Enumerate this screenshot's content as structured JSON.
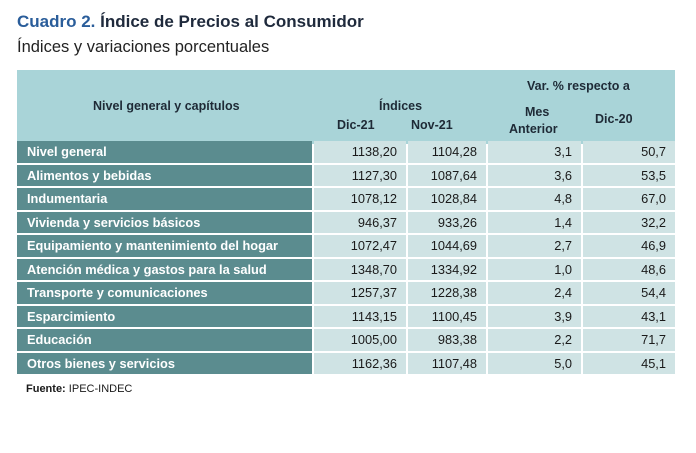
{
  "title": {
    "number": "Cuadro 2.",
    "text": "Índice de Precios al Consumidor"
  },
  "subtitle": "Índices y variaciones porcentuales",
  "header": {
    "nivel": "Nivel general y capítulos",
    "indices": "Índices",
    "dic21": "Dic-21",
    "nov21": "Nov-21",
    "var": "Var. % respecto a",
    "mes": "Mes",
    "anterior": "Anterior",
    "dic20": "Dic-20"
  },
  "rows": [
    {
      "label": "Nivel general",
      "dic21": "1138,20",
      "nov21": "1104,28",
      "mes": "3,1",
      "dic20": "50,7"
    },
    {
      "label": "Alimentos y bebidas",
      "dic21": "1127,30",
      "nov21": "1087,64",
      "mes": "3,6",
      "dic20": "53,5"
    },
    {
      "label": "Indumentaria",
      "dic21": "1078,12",
      "nov21": "1028,84",
      "mes": "4,8",
      "dic20": "67,0"
    },
    {
      "label": "Vivienda y servicios básicos",
      "dic21": "946,37",
      "nov21": "933,26",
      "mes": "1,4",
      "dic20": "32,2"
    },
    {
      "label": "Equipamiento y mantenimiento del hogar",
      "dic21": "1072,47",
      "nov21": "1044,69",
      "mes": "2,7",
      "dic20": "46,9"
    },
    {
      "label": "Atención médica y gastos para la salud",
      "dic21": "1348,70",
      "nov21": "1334,92",
      "mes": "1,0",
      "dic20": "48,6"
    },
    {
      "label": "Transporte y comunicaciones",
      "dic21": "1257,37",
      "nov21": "1228,38",
      "mes": "2,4",
      "dic20": "54,4"
    },
    {
      "label": "Esparcimiento",
      "dic21": "1143,15",
      "nov21": "1100,45",
      "mes": "3,9",
      "dic20": "43,1"
    },
    {
      "label": "Educación",
      "dic21": "1005,00",
      "nov21": "983,38",
      "mes": "2,2",
      "dic20": "71,7"
    },
    {
      "label": "Otros bienes y servicios",
      "dic21": "1162,36",
      "nov21": "1107,48",
      "mes": "5,0",
      "dic20": "45,1"
    }
  ],
  "source": {
    "label": "Fuente:",
    "text": "IPEC-INDEC"
  }
}
